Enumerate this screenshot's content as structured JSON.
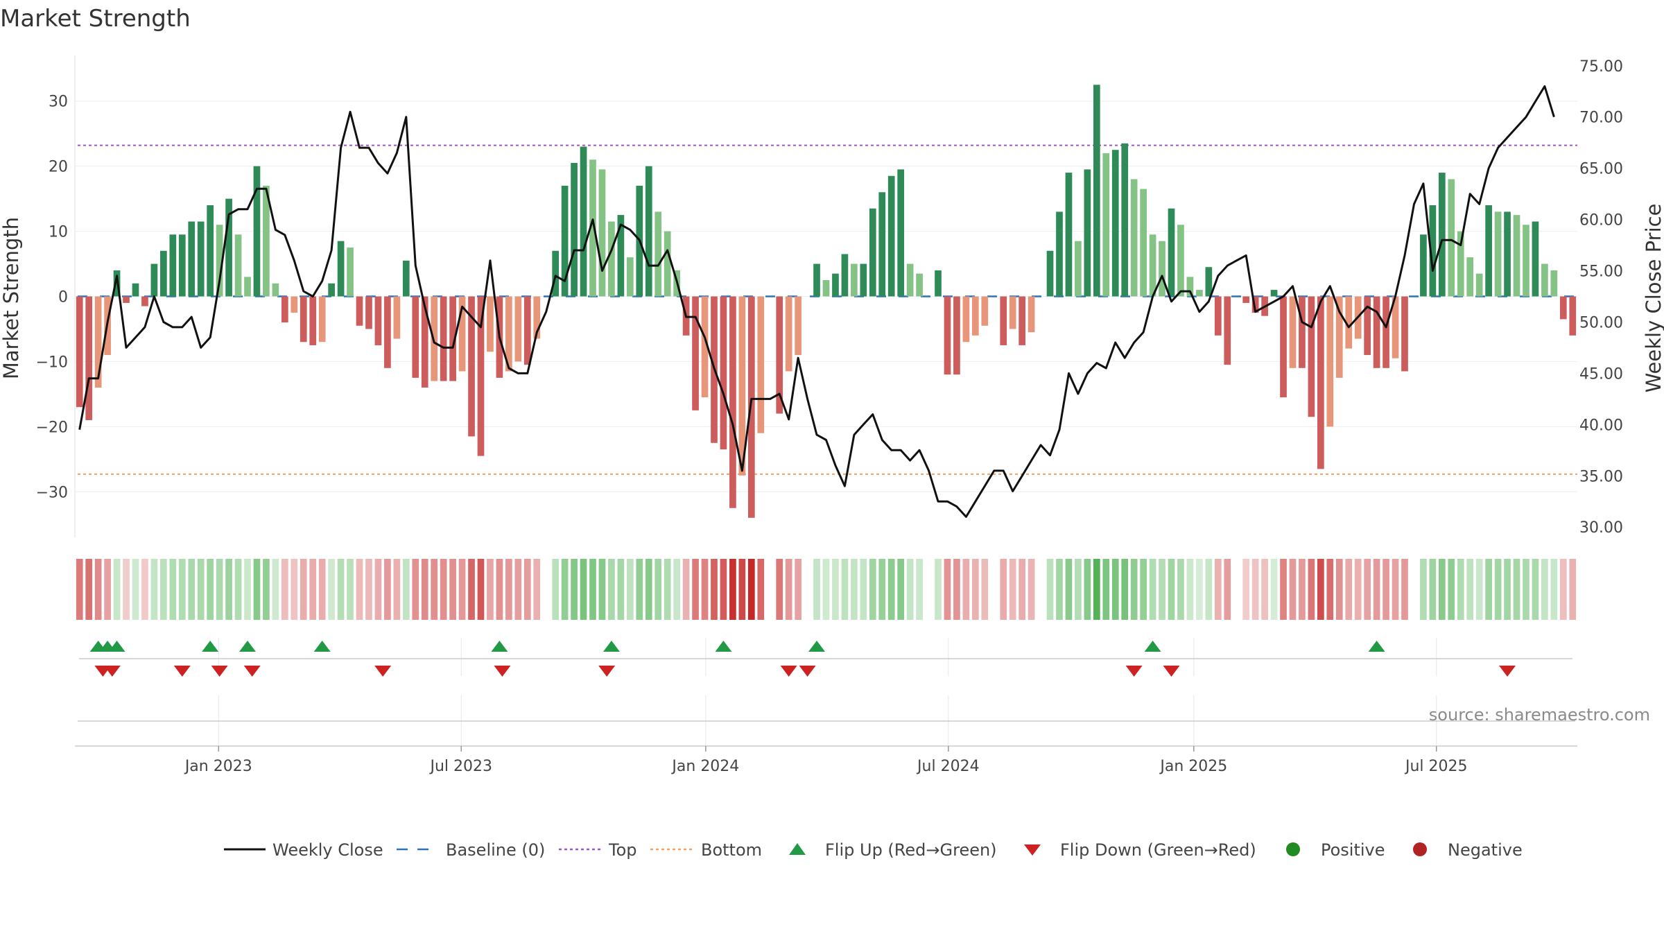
{
  "chart_data": {
    "type": "bar+line",
    "title": "Market Strength",
    "ylabel_left": "Market Strength",
    "ylabel_right": "Weekly Close Price",
    "left_ylim": [
      -37,
      37
    ],
    "right_ylim": [
      29,
      76
    ],
    "left_ticks": [
      30,
      20,
      10,
      0,
      -10,
      -20,
      -30
    ],
    "left_tick_labels": [
      "30",
      "20",
      "10",
      "0",
      "−10",
      "−20",
      "−30"
    ],
    "right_ticks": [
      75,
      70,
      65,
      60,
      55,
      50,
      45,
      40,
      35,
      30
    ],
    "right_tick_labels": [
      "75.00",
      "70.00",
      "65.00",
      "60.00",
      "55.00",
      "50.00",
      "45.00",
      "40.00",
      "35.00",
      "30.00"
    ],
    "top_level": 23.2,
    "bottom_level": -27.3,
    "baseline": 0,
    "x_ticks": [
      "Jan 2023",
      "Jul 2023",
      "Jan 2024",
      "Jul 2024",
      "Jan 2025",
      "Jul 2025"
    ],
    "x_tick_week_index": [
      14.9,
      40.9,
      67.1,
      93.1,
      119.4,
      145.4
    ],
    "strength": [
      -17,
      -19,
      -14,
      -9,
      4,
      -1,
      2,
      -1.5,
      5,
      7,
      9.5,
      9.5,
      11.5,
      11.5,
      14,
      11,
      15,
      9.5,
      3,
      20,
      17,
      2,
      -4,
      -2.5,
      -7,
      -7.5,
      -7,
      2,
      8.5,
      7.5,
      -4.5,
      -5,
      -7.5,
      -11,
      -6.5,
      5.5,
      -12.5,
      -14,
      -13,
      -13,
      -13,
      -11.5,
      -21.5,
      -24.5,
      -8.5,
      -12.5,
      -11.5,
      -10,
      -10.5,
      -6.5,
      0,
      7,
      17,
      20.5,
      23,
      21,
      19.5,
      11.5,
      12.5,
      6,
      17,
      20,
      13,
      10,
      4,
      -6,
      -17.5,
      -15.5,
      -22.5,
      -23.5,
      -32.5,
      -27.5,
      -34,
      -21,
      0,
      -18,
      -11.5,
      -9,
      0,
      5,
      2.5,
      3.5,
      6.5,
      5,
      5,
      13.5,
      16,
      18.5,
      19.5,
      5,
      3.5,
      0,
      4,
      -12,
      -12,
      -7,
      -6,
      -4.5,
      0,
      -7.5,
      -5,
      -7.5,
      -5.5,
      0,
      7,
      13,
      19,
      8.5,
      19.5,
      32.5,
      22,
      22.5,
      23.5,
      18,
      16.5,
      9.5,
      8.5,
      13.5,
      11,
      3,
      1,
      4.5,
      -6,
      -10.5,
      0,
      -1,
      -2.5,
      -3,
      1,
      -15.5,
      -11,
      -11,
      -18.5,
      -26.5,
      -20,
      -12.5,
      -8,
      -6.5,
      -9,
      -11,
      -11,
      -9.5,
      -11.5,
      0,
      9.5,
      14,
      19,
      18,
      10,
      6,
      3.5,
      14,
      13,
      13,
      12.5,
      11,
      11.5,
      5,
      4,
      -3.5,
      -6
    ],
    "weekly_close": [
      39.5,
      44.5,
      44.5,
      50,
      54.5,
      47.5,
      48.5,
      49.5,
      52.5,
      50,
      49.5,
      49.5,
      50.5,
      47.5,
      48.5,
      54,
      60.5,
      61,
      61,
      63,
      63,
      59,
      58.5,
      56,
      53,
      52.5,
      54,
      57,
      67,
      70.5,
      67,
      67,
      65.5,
      64.5,
      66.5,
      70,
      55.5,
      51.5,
      48,
      47.5,
      47.5,
      51.5,
      50.5,
      49.5,
      56,
      48.5,
      45.5,
      45,
      45,
      49,
      51,
      54.5,
      54,
      57,
      57,
      60,
      55,
      57,
      59.5,
      59,
      58,
      55.5,
      55.5,
      57,
      54,
      50.5,
      50.5,
      48.5,
      45.5,
      43,
      40,
      35.5,
      42.5,
      42.5,
      42.5,
      43,
      40.5,
      46.5,
      42.5,
      39,
      38.5,
      36,
      34,
      39,
      40,
      41,
      38.5,
      37.5,
      37.5,
      36.5,
      37.5,
      35.5,
      32.5,
      32.5,
      32,
      31,
      32.5,
      34,
      35.5,
      35.5,
      33.5,
      35,
      36.5,
      38,
      37,
      39.5,
      45,
      43,
      45,
      46,
      45.5,
      48,
      46.5,
      48,
      49,
      52.5,
      54.5,
      52,
      53,
      53,
      51,
      52,
      54.5,
      55.5,
      56,
      56.5,
      51,
      51.5,
      52,
      52.5,
      53.5,
      50,
      49.5,
      52,
      53.5,
      51,
      49.5,
      50.5,
      51.5,
      51,
      49.5,
      52.5,
      56.5,
      61.5,
      63.5,
      55,
      58,
      58,
      57.5,
      62.5,
      61.5,
      65,
      67,
      68,
      69,
      70,
      71.5,
      73,
      70
    ],
    "flip_up_week_index": [
      2,
      3,
      4,
      14,
      18,
      26,
      45,
      57,
      69,
      79,
      115,
      139
    ],
    "flip_down_week_index": [
      2.5,
      3.5,
      11,
      15,
      18.5,
      32.5,
      45.3,
      56.5,
      76,
      78,
      113,
      117,
      153
    ],
    "legend": [
      "Weekly Close",
      "Baseline (0)",
      "Top",
      "Bottom",
      "Flip Up (Red→Green)",
      "Flip Down (Green→Red)",
      "Positive",
      "Negative"
    ],
    "colors": {
      "close": "#111111",
      "baseline": "#2b73b8",
      "top": "#9b59b6",
      "bottom": "#f0a060",
      "pos_strong": "#2e8b57",
      "pos_light": "#85c285",
      "neg_strong": "#cd5c5c",
      "neg_light": "#e8967a",
      "flip_up": "#229944",
      "flip_down": "#cc2222",
      "positive_dot": "#228b22",
      "negative_dot": "#b22222",
      "strip_pos": "#4caf50",
      "strip_neg": "#c62828"
    },
    "source": "source: sharemaestro.com"
  }
}
